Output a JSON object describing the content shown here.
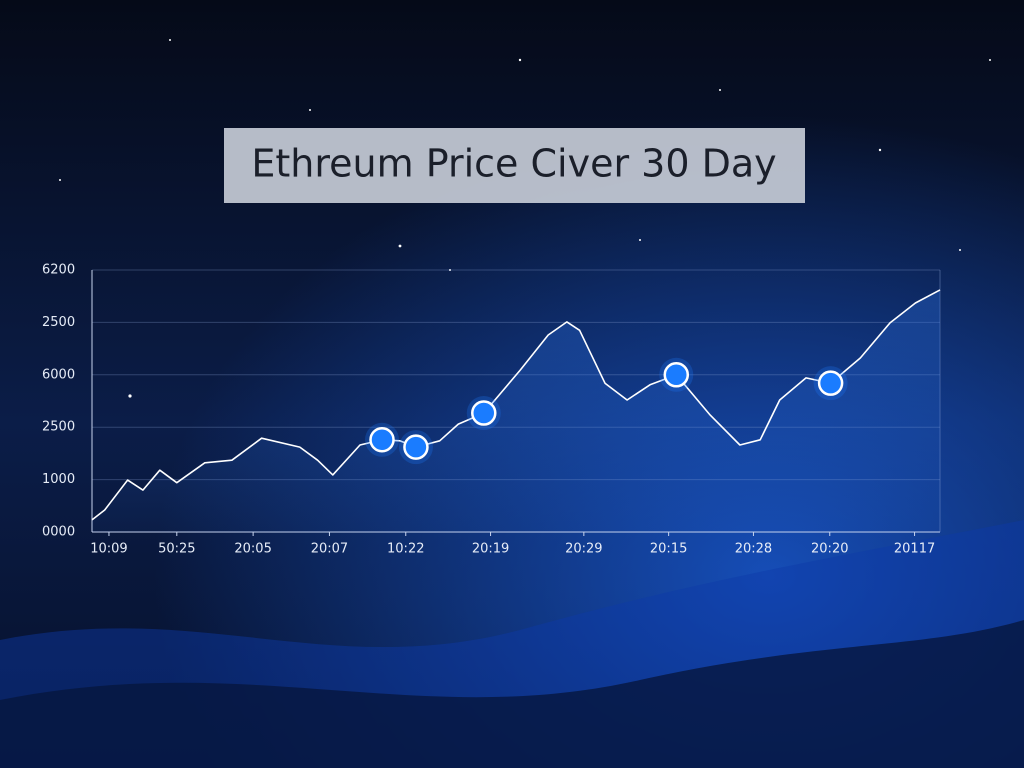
{
  "chart_data": {
    "type": "line",
    "title": "Ethreum Price Civer 30 Day",
    "xlim": [
      0,
      100
    ],
    "ylim": [
      0,
      5
    ],
    "xticks": [
      {
        "value": 2,
        "label": "10:09"
      },
      {
        "value": 10,
        "label": "50:25"
      },
      {
        "value": 19,
        "label": "20:05"
      },
      {
        "value": 28,
        "label": "20:07"
      },
      {
        "value": 37,
        "label": "10:22"
      },
      {
        "value": 47,
        "label": "20:19"
      },
      {
        "value": 58,
        "label": "20:29"
      },
      {
        "value": 68,
        "label": "20:15"
      },
      {
        "value": 78,
        "label": "20:28"
      },
      {
        "value": 87,
        "label": "20:20"
      },
      {
        "value": 97,
        "label": "20117"
      }
    ],
    "yticks": [
      {
        "value": 0,
        "label": "0000"
      },
      {
        "value": 1,
        "label": "1000"
      },
      {
        "value": 2,
        "label": "2500"
      },
      {
        "value": 3,
        "label": "6000"
      },
      {
        "value": 4,
        "label": "2500"
      },
      {
        "value": 5,
        "label": "6200"
      }
    ],
    "grid": true,
    "x": [
      0,
      1.5,
      4.2,
      6,
      8,
      10,
      13.3,
      16.5,
      20,
      24.5,
      26.6,
      28.4,
      31.6,
      34.2,
      36.3,
      38.2,
      41,
      43.2,
      46.2,
      50.5,
      53.8,
      56,
      57.5,
      60.5,
      63.1,
      65.8,
      68.9,
      72.9,
      76.4,
      78.8,
      81.1,
      84.2,
      87.1,
      90.6,
      94.1,
      97.1,
      100
    ],
    "series": [
      {
        "color": "#ffffff",
        "values": [
          0.23,
          0.42,
          0.99,
          0.8,
          1.18,
          0.94,
          1.32,
          1.37,
          1.79,
          1.62,
          1.37,
          1.09,
          1.66,
          1.76,
          1.74,
          1.62,
          1.74,
          2.06,
          2.27,
          3.09,
          3.76,
          4.01,
          3.85,
          2.84,
          2.52,
          2.81,
          3.0,
          2.23,
          1.66,
          1.76,
          2.52,
          2.94,
          2.84,
          3.32,
          3.99,
          4.37,
          4.62
        ]
      },
      {
        "color": "#1a7cff",
        "x": [
          34.2,
          38.2,
          46.2,
          68.9,
          87.1
        ],
        "values": [
          1.76,
          1.62,
          2.27,
          3.0,
          2.84
        ]
      }
    ]
  }
}
